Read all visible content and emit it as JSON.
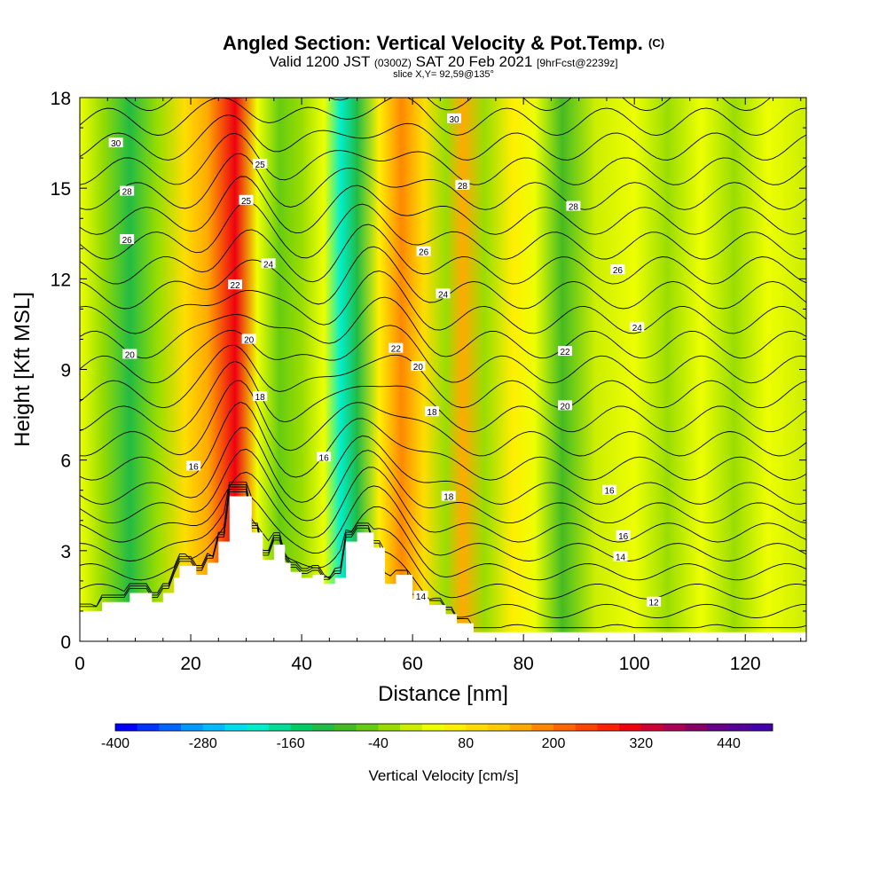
{
  "header": {
    "title": "Angled Section: Vertical Velocity & Pot.Temp.",
    "title_units": "(C)",
    "valid_prefix": "Valid 1200 JST",
    "valid_utc": "(0300Z)",
    "valid_date": "SAT 20 Feb 2021",
    "forecast": "[9hrFcst@2239z]",
    "slice": "slice X,Y= 92,59@135°"
  },
  "chart_data": {
    "type": "heatmap",
    "xlabel": "Distance [nm]",
    "ylabel": "Height [Kft MSL]",
    "xlim": [
      0,
      131
    ],
    "ylim": [
      0,
      18
    ],
    "x_ticks": [
      0,
      20,
      40,
      60,
      80,
      100,
      120
    ],
    "y_ticks": [
      0,
      3,
      6,
      9,
      12,
      15,
      18
    ],
    "colorbar": {
      "title": "Vertical Velocity [cm/s]",
      "min": -400,
      "max": 500,
      "step": 30,
      "tick_labels": [
        "-400",
        "-280",
        "-160",
        "-40",
        "80",
        "200",
        "320",
        "440"
      ],
      "tick_values": [
        -400,
        -280,
        -160,
        -40,
        80,
        200,
        320,
        440
      ],
      "colors": [
        "#0000ff",
        "#0033ff",
        "#0066ff",
        "#0099ff",
        "#00bbff",
        "#00ddee",
        "#00eecc",
        "#00dd99",
        "#00cc66",
        "#22bb44",
        "#44bb22",
        "#66cc11",
        "#99dd00",
        "#ccee00",
        "#eeff00",
        "#ffee00",
        "#ffdd00",
        "#ffcc00",
        "#ffaa00",
        "#ff8800",
        "#ff6600",
        "#ff4400",
        "#ff2200",
        "#ee0011",
        "#cc0033",
        "#aa0055",
        "#880066",
        "#660088",
        "#550099",
        "#4400aa"
      ]
    },
    "vertical_velocity_bands": [
      {
        "x": 0,
        "value": 20
      },
      {
        "x": 4,
        "value": -40
      },
      {
        "x": 9,
        "value": -120
      },
      {
        "x": 14,
        "value": -20
      },
      {
        "x": 19,
        "value": 80
      },
      {
        "x": 23,
        "value": 140
      },
      {
        "x": 28,
        "value": 300
      },
      {
        "x": 32,
        "value": 40
      },
      {
        "x": 36,
        "value": -70
      },
      {
        "x": 40,
        "value": -40
      },
      {
        "x": 44,
        "value": 30
      },
      {
        "x": 47,
        "value": -200
      },
      {
        "x": 50,
        "value": -120
      },
      {
        "x": 54,
        "value": 60
      },
      {
        "x": 58,
        "value": 180
      },
      {
        "x": 62,
        "value": 80
      },
      {
        "x": 66,
        "value": -40
      },
      {
        "x": 69,
        "value": 150
      },
      {
        "x": 73,
        "value": -20
      },
      {
        "x": 78,
        "value": 70
      },
      {
        "x": 82,
        "value": 40
      },
      {
        "x": 87,
        "value": -90
      },
      {
        "x": 93,
        "value": 10
      },
      {
        "x": 100,
        "value": 40
      },
      {
        "x": 106,
        "value": -20
      },
      {
        "x": 112,
        "value": 30
      },
      {
        "x": 118,
        "value": -30
      },
      {
        "x": 124,
        "value": 20
      },
      {
        "x": 131,
        "value": -10
      }
    ],
    "terrain": [
      [
        0,
        1
      ],
      [
        4,
        1
      ],
      [
        4,
        1.3
      ],
      [
        9,
        1.3
      ],
      [
        9,
        1.6
      ],
      [
        13,
        1.6
      ],
      [
        13,
        1.3
      ],
      [
        15,
        1.3
      ],
      [
        15,
        1.6
      ],
      [
        17,
        1.6
      ],
      [
        17,
        2.1
      ],
      [
        18,
        2.1
      ],
      [
        18,
        2.5
      ],
      [
        21,
        2.5
      ],
      [
        21,
        2.2
      ],
      [
        23,
        2.2
      ],
      [
        23,
        2.6
      ],
      [
        25,
        2.6
      ],
      [
        25,
        3.3
      ],
      [
        27,
        3.3
      ],
      [
        27,
        4.8
      ],
      [
        31,
        4.8
      ],
      [
        31,
        3.6
      ],
      [
        33,
        3.6
      ],
      [
        33,
        2.7
      ],
      [
        35,
        2.7
      ],
      [
        35,
        3.2
      ],
      [
        37,
        3.2
      ],
      [
        37,
        2.6
      ],
      [
        38,
        2.6
      ],
      [
        38,
        2.3
      ],
      [
        40,
        2.3
      ],
      [
        40,
        2.1
      ],
      [
        42,
        2.1
      ],
      [
        42,
        2.2
      ],
      [
        44,
        2.2
      ],
      [
        44,
        1.9
      ],
      [
        46,
        1.9
      ],
      [
        46,
        2.1
      ],
      [
        48,
        2.1
      ],
      [
        48,
        3.3
      ],
      [
        50,
        3.3
      ],
      [
        50,
        3.6
      ],
      [
        53,
        3.6
      ],
      [
        53,
        3.1
      ],
      [
        55,
        3.1
      ],
      [
        55,
        1.9
      ],
      [
        57,
        1.9
      ],
      [
        57,
        2.2
      ],
      [
        60,
        2.2
      ],
      [
        60,
        1.4
      ],
      [
        63,
        1.4
      ],
      [
        63,
        1.2
      ],
      [
        66,
        1.2
      ],
      [
        66,
        0.9
      ],
      [
        68,
        0.9
      ],
      [
        68,
        0.6
      ],
      [
        71,
        0.6
      ],
      [
        71,
        0.3
      ],
      [
        131,
        0.3
      ]
    ],
    "potential_temperature_contours": {
      "interval": 1,
      "levels": [
        9,
        10,
        11,
        12,
        13,
        14,
        15,
        16,
        17,
        18,
        19,
        20,
        21,
        22,
        23,
        24,
        25,
        26,
        27,
        28,
        29,
        30,
        31,
        32
      ],
      "labels": [
        {
          "text": "30",
          "x": 6.5,
          "y": 16.5
        },
        {
          "text": "28",
          "x": 8.5,
          "y": 14.9
        },
        {
          "text": "26",
          "x": 8.5,
          "y": 13.3
        },
        {
          "text": "20",
          "x": 9,
          "y": 9.5
        },
        {
          "text": "25",
          "x": 32.5,
          "y": 15.8
        },
        {
          "text": "25",
          "x": 30,
          "y": 14.6
        },
        {
          "text": "24",
          "x": 34,
          "y": 12.5
        },
        {
          "text": "22",
          "x": 28,
          "y": 11.8
        },
        {
          "text": "20",
          "x": 30.5,
          "y": 10
        },
        {
          "text": "18",
          "x": 32.5,
          "y": 8.1
        },
        {
          "text": "16",
          "x": 20.5,
          "y": 5.8
        },
        {
          "text": "16",
          "x": 44,
          "y": 6.1
        },
        {
          "text": "30",
          "x": 67.5,
          "y": 17.3
        },
        {
          "text": "28",
          "x": 69,
          "y": 15.1
        },
        {
          "text": "26",
          "x": 62,
          "y": 12.9
        },
        {
          "text": "24",
          "x": 65.5,
          "y": 11.5
        },
        {
          "text": "22",
          "x": 57,
          "y": 9.7
        },
        {
          "text": "20",
          "x": 61,
          "y": 9.1
        },
        {
          "text": "18",
          "x": 63.5,
          "y": 7.6
        },
        {
          "text": "18",
          "x": 66.5,
          "y": 4.8
        },
        {
          "text": "14",
          "x": 61.5,
          "y": 1.5
        },
        {
          "text": "28",
          "x": 89,
          "y": 14.4
        },
        {
          "text": "26",
          "x": 97,
          "y": 12.3
        },
        {
          "text": "24",
          "x": 100.5,
          "y": 10.4
        },
        {
          "text": "22",
          "x": 87.5,
          "y": 9.6
        },
        {
          "text": "20",
          "x": 87.5,
          "y": 7.8
        },
        {
          "text": "16",
          "x": 95.5,
          "y": 5
        },
        {
          "text": "16",
          "x": 98,
          "y": 3.5
        },
        {
          "text": "14",
          "x": 97.5,
          "y": 2.8
        },
        {
          "text": "12",
          "x": 103.5,
          "y": 1.3
        }
      ]
    }
  }
}
